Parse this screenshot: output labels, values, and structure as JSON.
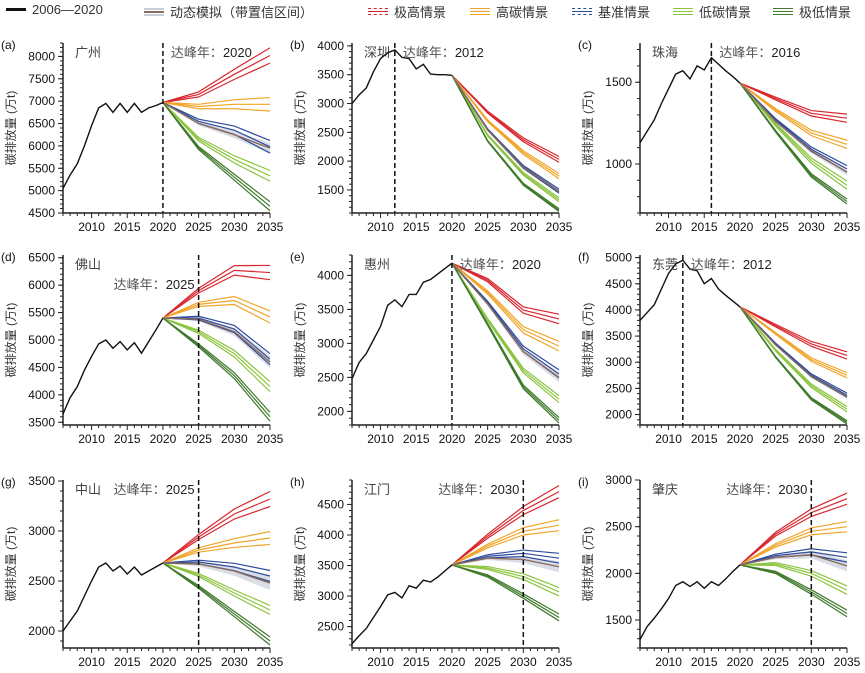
{
  "legend": {
    "history": "2006—2020",
    "dynamic": "动态模拟（带置信区间）",
    "ex_high": "极高情景",
    "high": "高碳情景",
    "base": "基准情景",
    "low": "低碳情景",
    "ex_low": "极低情景"
  },
  "colors": {
    "history": "#111111",
    "dynamic": "#8a6a5c",
    "dynamic_band": "#c9ceda",
    "ex_high": "#d9262e",
    "high": "#f0a52a",
    "base": "#2e4c9c",
    "low": "#8cc43f",
    "ex_low": "#3f7a2c"
  },
  "chart_data": [
    {
      "type": "line",
      "label": "(a)",
      "city": "广州",
      "peak_label": "达峰年：",
      "peak_year": 2020,
      "ylabel": "碳排放量 (万t)",
      "xlim": [
        2006,
        2035
      ],
      "ylim": [
        4500,
        8300
      ],
      "xticks": [
        2010,
        2015,
        2020,
        2025,
        2030,
        2035
      ],
      "yticks": [
        4500,
        5000,
        5500,
        6000,
        6500,
        7000,
        7500,
        8000
      ],
      "history": [
        5050,
        5350,
        5600,
        6000,
        6450,
        6850,
        6950,
        6750,
        6950,
        6750,
        6950,
        6750,
        6850,
        6900,
        6970
      ],
      "scenario_years": [
        2020,
        2025,
        2030,
        2035
      ],
      "scenarios": {
        "ex_high": {
          "mid": [
            6970,
            7150,
            7600,
            8020
          ],
          "spread": 170
        },
        "high": {
          "mid": [
            6970,
            6880,
            6930,
            6930
          ],
          "spread": 150
        },
        "base": {
          "mid": [
            6970,
            6550,
            6350,
            5980
          ],
          "spread": 140
        },
        "low": {
          "mid": [
            6970,
            6150,
            5700,
            5330
          ],
          "spread": 120
        },
        "ex_low": {
          "mid": [
            6970,
            5950,
            5300,
            4650
          ],
          "spread": 100
        }
      },
      "dynamic": {
        "mid": [
          6970,
          6500,
          6250,
          5950
        ],
        "band": 120
      }
    },
    {
      "type": "line",
      "label": "(b)",
      "city": "深圳",
      "peak_label": "达峰年：",
      "peak_year": 2012,
      "ylabel": "碳排放量 (万t)",
      "xlim": [
        2006,
        2035
      ],
      "ylim": [
        1100,
        4050
      ],
      "xticks": [
        2010,
        2015,
        2020,
        2025,
        2030,
        2035
      ],
      "yticks": [
        1500,
        2000,
        2500,
        3000,
        3500,
        4000
      ],
      "history": [
        3000,
        3150,
        3270,
        3550,
        3780,
        3880,
        3930,
        3800,
        3780,
        3600,
        3680,
        3510,
        3500,
        3500,
        3490
      ],
      "scenario_years": [
        2020,
        2025,
        2030,
        2035
      ],
      "scenarios": {
        "ex_high": {
          "mid": [
            3490,
            2850,
            2370,
            2030
          ],
          "spread": 50
        },
        "high": {
          "mid": [
            3490,
            2700,
            2150,
            1740
          ],
          "spread": 45
        },
        "base": {
          "mid": [
            3490,
            2550,
            1900,
            1480
          ],
          "spread": 35
        },
        "low": {
          "mid": [
            3490,
            2450,
            1780,
            1330
          ],
          "spread": 35
        },
        "ex_low": {
          "mid": [
            3490,
            2350,
            1600,
            1150
          ],
          "spread": 25
        }
      },
      "dynamic": {
        "mid": [
          3490,
          2540,
          1890,
          1470
        ],
        "band": 30
      }
    },
    {
      "type": "line",
      "label": "(c)",
      "city": "珠海",
      "peak_label": "达峰年：",
      "peak_year": 2016,
      "ylabel": "碳排放量 (万t)",
      "xlim": [
        2006,
        2035
      ],
      "ylim": [
        700,
        1740
      ],
      "xticks": [
        2010,
        2015,
        2020,
        2025,
        2030,
        2035
      ],
      "yticks": [
        1000,
        1500
      ],
      "history": [
        1130,
        1200,
        1270,
        1370,
        1460,
        1550,
        1570,
        1520,
        1600,
        1575,
        1650,
        1610,
        1570,
        1535,
        1495
      ],
      "scenario_years": [
        2020,
        2025,
        2030,
        2035
      ],
      "scenarios": {
        "ex_high": {
          "mid": [
            1495,
            1400,
            1310,
            1280
          ],
          "spread": 25
        },
        "high": {
          "mid": [
            1495,
            1330,
            1190,
            1120
          ],
          "spread": 25
        },
        "base": {
          "mid": [
            1495,
            1270,
            1090,
            970
          ],
          "spread": 20
        },
        "low": {
          "mid": [
            1495,
            1240,
            1020,
            870
          ],
          "spread": 25
        },
        "ex_low": {
          "mid": [
            1495,
            1200,
            930,
            770
          ],
          "spread": 15
        }
      },
      "dynamic": {
        "mid": [
          1495,
          1260,
          1080,
          950
        ],
        "band": 20
      }
    },
    {
      "type": "line",
      "label": "(d)",
      "city": "佛山",
      "peak_label": "达峰年：",
      "peak_year": 2025,
      "ylabel": "碳排放量 (万t)",
      "xlim": [
        2006,
        2035
      ],
      "ylim": [
        3450,
        6550
      ],
      "xticks": [
        2010,
        2015,
        2020,
        2025,
        2030,
        2035
      ],
      "yticks": [
        3500,
        4000,
        4500,
        5000,
        5500,
        6000,
        6500
      ],
      "history": [
        3650,
        3950,
        4150,
        4450,
        4700,
        4930,
        5000,
        4850,
        4970,
        4820,
        4950,
        4760,
        4970,
        5180,
        5400
      ],
      "scenario_years": [
        2020,
        2025,
        2030,
        2035
      ],
      "scenarios": {
        "ex_high": {
          "mid": [
            5400,
            5900,
            6270,
            6230
          ],
          "spread": 130
        },
        "high": {
          "mid": [
            5400,
            5650,
            5720,
            5420
          ],
          "spread": 110
        },
        "base": {
          "mid": [
            5400,
            5400,
            5200,
            4650
          ],
          "spread": 100
        },
        "low": {
          "mid": [
            5400,
            5150,
            4750,
            4150
          ],
          "spread": 90
        },
        "ex_low": {
          "mid": [
            5400,
            4900,
            4350,
            3600
          ],
          "spread": 80
        }
      },
      "dynamic": {
        "mid": [
          5400,
          5380,
          5150,
          4600
        ],
        "band": 110
      }
    },
    {
      "type": "line",
      "label": "(e)",
      "city": "惠州",
      "peak_label": "达峰年：",
      "peak_year": 2020,
      "ylabel": "碳排放量 (万t)",
      "xlim": [
        2006,
        2035
      ],
      "ylim": [
        1800,
        4300
      ],
      "xticks": [
        2010,
        2015,
        2020,
        2025,
        2030,
        2035
      ],
      "yticks": [
        2000,
        2500,
        3000,
        3500,
        4000
      ],
      "history": [
        2480,
        2720,
        2850,
        3050,
        3250,
        3560,
        3640,
        3540,
        3720,
        3720,
        3900,
        3940,
        4020,
        4100,
        4180
      ],
      "scenario_years": [
        2020,
        2025,
        2030,
        2035
      ],
      "scenarios": {
        "ex_high": {
          "mid": [
            4180,
            3930,
            3490,
            3360
          ],
          "spread": 70
        },
        "high": {
          "mid": [
            4180,
            3750,
            3200,
            2960
          ],
          "spread": 70
        },
        "base": {
          "mid": [
            4180,
            3600,
            2920,
            2550
          ],
          "spread": 60
        },
        "low": {
          "mid": [
            4180,
            3350,
            2600,
            2180
          ],
          "spread": 50
        },
        "ex_low": {
          "mid": [
            4180,
            3280,
            2360,
            1870
          ],
          "spread": 40
        }
      },
      "dynamic": {
        "mid": [
          4180,
          3580,
          2880,
          2500
        ],
        "band": 70
      }
    },
    {
      "type": "line",
      "label": "(f)",
      "city": "东莞",
      "peak_label": "达峰年：",
      "peak_year": 2012,
      "ylabel": "碳排放量 (万t)",
      "xlim": [
        2006,
        2035
      ],
      "ylim": [
        1800,
        5050
      ],
      "xticks": [
        2010,
        2015,
        2020,
        2025,
        2030,
        2035
      ],
      "yticks": [
        2000,
        2500,
        3000,
        3500,
        4000,
        4500,
        5000
      ],
      "history": [
        3800,
        3950,
        4100,
        4400,
        4700,
        4880,
        4950,
        4780,
        4750,
        4500,
        4600,
        4400,
        4280,
        4170,
        4060
      ],
      "scenario_years": [
        2020,
        2025,
        2030,
        2035
      ],
      "scenarios": {
        "ex_high": {
          "mid": [
            4060,
            3700,
            3350,
            3130
          ],
          "spread": 70
        },
        "high": {
          "mid": [
            4060,
            3550,
            3050,
            2750
          ],
          "spread": 50
        },
        "base": {
          "mid": [
            4060,
            3350,
            2750,
            2370
          ],
          "spread": 40
        },
        "low": {
          "mid": [
            4060,
            3230,
            2550,
            2100
          ],
          "spread": 50
        },
        "ex_low": {
          "mid": [
            4060,
            3100,
            2300,
            1850
          ],
          "spread": 30
        }
      },
      "dynamic": {
        "mid": [
          4060,
          3330,
          2730,
          2340
        ],
        "band": 40
      }
    },
    {
      "type": "line",
      "label": "(g)",
      "city": "中山",
      "peak_label": "达峰年：",
      "peak_year": 2025,
      "ylabel": "碳排放量 (万t)",
      "xlim": [
        2006,
        2035
      ],
      "ylim": [
        1830,
        3510
      ],
      "xticks": [
        2010,
        2015,
        2020,
        2025,
        2030,
        2035
      ],
      "yticks": [
        2000,
        2500,
        3000,
        3500
      ],
      "history": [
        2000,
        2100,
        2200,
        2350,
        2500,
        2640,
        2680,
        2600,
        2650,
        2570,
        2640,
        2560,
        2600,
        2640,
        2680
      ],
      "scenario_years": [
        2020,
        2025,
        2030,
        2035
      ],
      "scenarios": {
        "ex_high": {
          "mid": [
            2680,
            2940,
            3170,
            3320
          ],
          "spread": 75
        },
        "high": {
          "mid": [
            2680,
            2810,
            2880,
            2930
          ],
          "spread": 65
        },
        "base": {
          "mid": [
            2680,
            2690,
            2640,
            2550
          ],
          "spread": 55
        },
        "low": {
          "mid": [
            2680,
            2560,
            2380,
            2210
          ],
          "spread": 45
        },
        "ex_low": {
          "mid": [
            2680,
            2440,
            2170,
            1900
          ],
          "spread": 40
        }
      },
      "dynamic": {
        "mid": [
          2680,
          2670,
          2600,
          2480
        ],
        "band": 70
      }
    },
    {
      "type": "line",
      "label": "(h)",
      "city": "江门",
      "peak_label": "达峰年：",
      "peak_year": 2030,
      "ylabel": "碳排放量 (万t)",
      "xlim": [
        2006,
        2035
      ],
      "ylim": [
        2150,
        4900
      ],
      "xticks": [
        2010,
        2015,
        2020,
        2025,
        2030,
        2035
      ],
      "yticks": [
        2500,
        3000,
        3500,
        4000,
        4500
      ],
      "history": [
        2220,
        2350,
        2470,
        2650,
        2830,
        3020,
        3060,
        2970,
        3170,
        3130,
        3260,
        3230,
        3310,
        3410,
        3510
      ],
      "scenario_years": [
        2020,
        2025,
        2030,
        2035
      ],
      "scenarios": {
        "ex_high": {
          "mid": [
            3510,
            3980,
            4400,
            4710
          ],
          "spread": 100
        },
        "high": {
          "mid": [
            3510,
            3820,
            4060,
            4160
          ],
          "spread": 90
        },
        "base": {
          "mid": [
            3510,
            3650,
            3700,
            3620
          ],
          "spread": 80
        },
        "low": {
          "mid": [
            3510,
            3460,
            3320,
            3070
          ],
          "spread": 70
        },
        "ex_low": {
          "mid": [
            3510,
            3330,
            3000,
            2650
          ],
          "spread": 55
        }
      },
      "dynamic": {
        "mid": [
          3510,
          3620,
          3600,
          3480
        ],
        "band": 90
      }
    },
    {
      "type": "line",
      "label": "(i)",
      "city": "肇庆",
      "peak_label": "达峰年：",
      "peak_year": 2030,
      "ylabel": "碳排放量 (万t)",
      "xlim": [
        2006,
        2035
      ],
      "ylim": [
        1200,
        3000
      ],
      "xticks": [
        2010,
        2015,
        2020,
        2025,
        2030,
        2035
      ],
      "yticks": [
        1500,
        2000,
        2500,
        3000
      ],
      "history": [
        1290,
        1430,
        1520,
        1620,
        1730,
        1870,
        1910,
        1860,
        1910,
        1840,
        1910,
        1870,
        1940,
        2020,
        2090
      ],
      "scenario_years": [
        2020,
        2025,
        2030,
        2035
      ],
      "scenarios": {
        "ex_high": {
          "mid": [
            2090,
            2420,
            2650,
            2800
          ],
          "spread": 60
        },
        "high": {
          "mid": [
            2090,
            2300,
            2450,
            2500
          ],
          "spread": 55
        },
        "base": {
          "mid": [
            2090,
            2190,
            2230,
            2170
          ],
          "spread": 50
        },
        "low": {
          "mid": [
            2090,
            2100,
            2000,
            1820
          ],
          "spread": 45
        },
        "ex_low": {
          "mid": [
            2090,
            2010,
            1800,
            1570
          ],
          "spread": 35
        }
      },
      "dynamic": {
        "mid": [
          2090,
          2170,
          2200,
          2080
        ],
        "band": 60
      }
    }
  ]
}
